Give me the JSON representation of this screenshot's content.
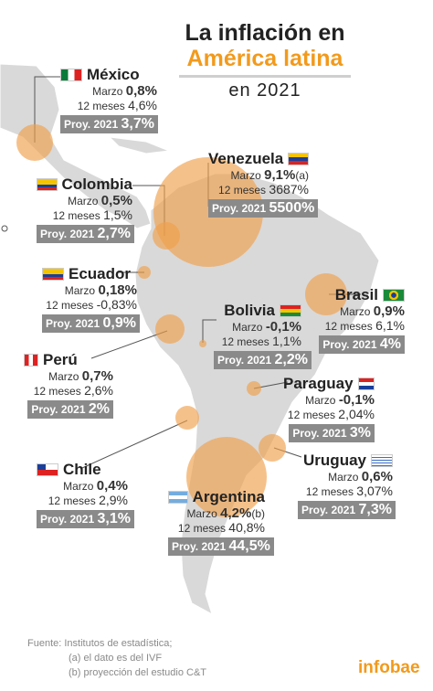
{
  "title": {
    "line1": "La inflación en",
    "line2": "América latina",
    "line3": "en 2021"
  },
  "labels": {
    "marzo": "Marzo",
    "meses": "12 meses",
    "proy": "Proy. 2021"
  },
  "colors": {
    "accent": "#f29a1c",
    "bubble": "#f0a04b",
    "land": "#d9d9d9",
    "badge": "#8a8a8a"
  },
  "countries": [
    {
      "name": "México",
      "flag": "mexico-flag",
      "marzo": "0,8%",
      "meses": "4,6%",
      "proy": "3,7%"
    },
    {
      "name": "Venezuela",
      "flag": "venezuela-flag",
      "marzo": "9,1%",
      "note": "(a)",
      "meses": "3687%",
      "proy": "5500%"
    },
    {
      "name": "Colombia",
      "flag": "colombia-flag",
      "marzo": "0,5%",
      "meses": "1,5%",
      "proy": "2,7%"
    },
    {
      "name": "Ecuador",
      "flag": "ecuador-flag",
      "marzo": "0,18%",
      "meses": "-0,83%",
      "proy": "0,9%"
    },
    {
      "name": "Brasil",
      "flag": "brazil-flag",
      "marzo": "0,9%",
      "meses": "6,1%",
      "proy": "4%"
    },
    {
      "name": "Bolivia",
      "flag": "bolivia-flag",
      "marzo": "-0,1%",
      "meses": "1,1%",
      "proy": "2,2%"
    },
    {
      "name": "Perú",
      "flag": "peru-flag",
      "marzo": "0,7%",
      "meses": "2,6%",
      "proy": "2%"
    },
    {
      "name": "Paraguay",
      "flag": "paraguay-flag",
      "marzo": "-0,1%",
      "meses": "2,04%",
      "proy": "3%"
    },
    {
      "name": "Chile",
      "flag": "chile-flag",
      "marzo": "0,4%",
      "meses": "2,9%",
      "proy": "3,1%"
    },
    {
      "name": "Uruguay",
      "flag": "uruguay-flag",
      "marzo": "0,6%",
      "meses": "3,07%",
      "proy": "7,3%"
    },
    {
      "name": "Argentina",
      "flag": "argentina-flag",
      "marzo": "4,2%",
      "note": "(b)",
      "meses": "40,8%",
      "proy": "44,5%"
    }
  ],
  "source": {
    "label": "Fuente:",
    "text": "Institutos de estadística;",
    "note_a": "(a) el dato es del IVF",
    "note_b": "(b) proyección del estudio C&T"
  },
  "logo": "infobae"
}
